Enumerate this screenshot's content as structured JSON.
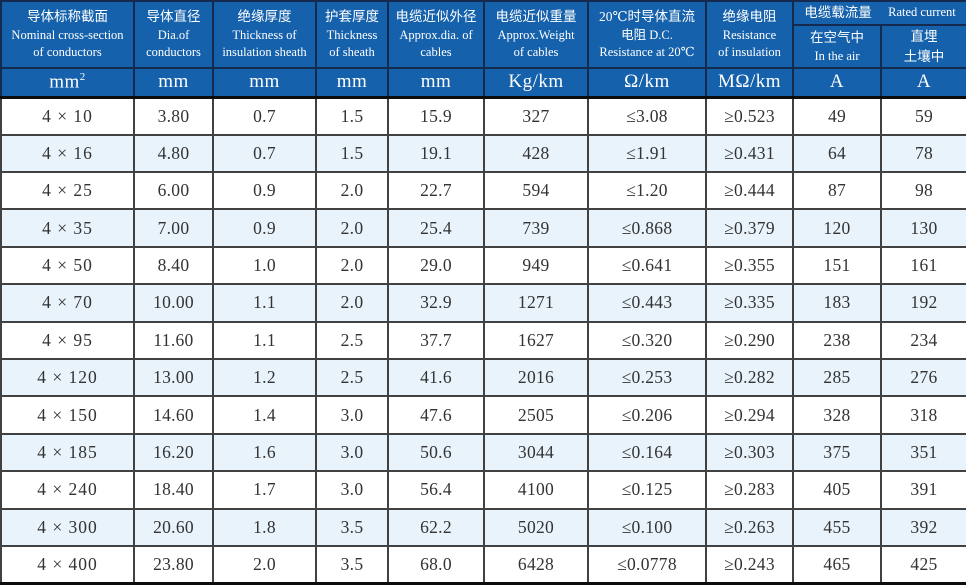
{
  "table": {
    "title_semantic": "cable-specification-table",
    "columns": [
      {
        "zh": "导体标称截面",
        "en": "Nominal cross-section\nof conductors"
      },
      {
        "zh": "导体直径",
        "en": "Dia.of\nconductors"
      },
      {
        "zh": "绝缘厚度",
        "en": "Thickness of\ninsulation sheath"
      },
      {
        "zh": "护套厚度",
        "en": "Thickness\nof sheath"
      },
      {
        "zh": "电缆近似外径",
        "en": "Approx.dia. of\ncables"
      },
      {
        "zh": "电缆近似重量",
        "en": "Approx.Weight\nof cables"
      },
      {
        "zh": "20℃时导体直流",
        "en": "电阻 D.C.\nResistance at 20℃"
      },
      {
        "zh": "绝缘电阻",
        "en": "Resistance\nof insulation"
      },
      {
        "zh": "在空气中",
        "en": "In the air"
      },
      {
        "zh": "直埋\n土壤中",
        "en": ""
      }
    ],
    "group_header": {
      "zh": "电缆载流量",
      "en": "Rated current"
    },
    "units": [
      "mm²",
      "mm",
      "mm",
      "mm",
      "mm",
      "Kg/km",
      "Ω/km",
      "MΩ/km",
      "A",
      "A"
    ],
    "rows": [
      [
        "4 × 10",
        "3.80",
        "0.7",
        "1.5",
        "15.9",
        "327",
        "≤3.08",
        "≥0.523",
        "49",
        "59"
      ],
      [
        "4 × 16",
        "4.80",
        "0.7",
        "1.5",
        "19.1",
        "428",
        "≤1.91",
        "≥0.431",
        "64",
        "78"
      ],
      [
        "4 × 25",
        "6.00",
        "0.9",
        "2.0",
        "22.7",
        "594",
        "≤1.20",
        "≥0.444",
        "87",
        "98"
      ],
      [
        "4 × 35",
        "7.00",
        "0.9",
        "2.0",
        "25.4",
        "739",
        "≤0.868",
        "≥0.379",
        "120",
        "130"
      ],
      [
        "4 × 50",
        "8.40",
        "1.0",
        "2.0",
        "29.0",
        "949",
        "≤0.641",
        "≥0.355",
        "151",
        "161"
      ],
      [
        "4 × 70",
        "10.00",
        "1.1",
        "2.0",
        "32.9",
        "1271",
        "≤0.443",
        "≥0.335",
        "183",
        "192"
      ],
      [
        "4 × 95",
        "11.60",
        "1.1",
        "2.5",
        "37.7",
        "1627",
        "≤0.320",
        "≥0.290",
        "238",
        "234"
      ],
      [
        "4 × 120",
        "13.00",
        "1.2",
        "2.5",
        "41.6",
        "2016",
        "≤0.253",
        "≥0.282",
        "285",
        "276"
      ],
      [
        "4 × 150",
        "14.60",
        "1.4",
        "3.0",
        "47.6",
        "2505",
        "≤0.206",
        "≥0.294",
        "328",
        "318"
      ],
      [
        "4 × 185",
        "16.20",
        "1.6",
        "3.0",
        "50.6",
        "3044",
        "≤0.164",
        "≥0.303",
        "375",
        "351"
      ],
      [
        "4 × 240",
        "18.40",
        "1.7",
        "3.0",
        "56.4",
        "4100",
        "≤0.125",
        "≥0.283",
        "405",
        "391"
      ],
      [
        "4 × 300",
        "20.60",
        "1.8",
        "3.5",
        "62.2",
        "5020",
        "≤0.100",
        "≥0.263",
        "455",
        "392"
      ],
      [
        "4 × 400",
        "23.80",
        "2.0",
        "3.5",
        "68.0",
        "6428",
        "≤0.0778",
        "≥0.243",
        "465",
        "425"
      ]
    ],
    "colors": {
      "header_bg": "#1561ac",
      "header_text": "#ffffff",
      "header_divider": "#16294e",
      "alt_row_bg": "#e8f3fb",
      "row_bg": "#ffffff",
      "body_grid": "#414141",
      "body_text": "#333333",
      "outer_border": "#0d0d0d"
    }
  }
}
